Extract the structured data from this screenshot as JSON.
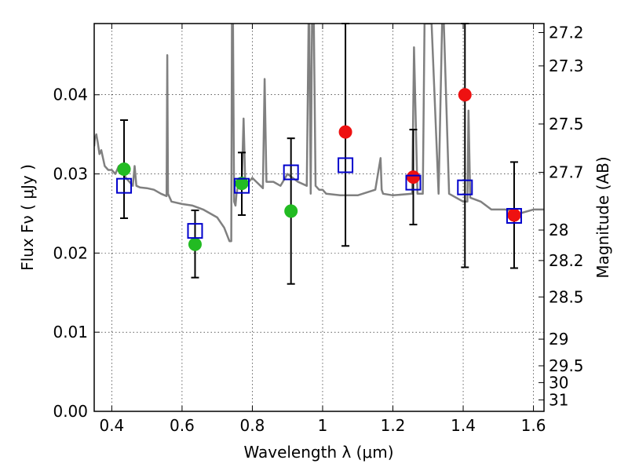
{
  "chart_data": {
    "type": "scatter",
    "title": "",
    "xlabel": "Wavelength  λ (μm)",
    "ylabel": "Flux  Fν  ( μJy )",
    "ylabel_right": "Magnitude (AB)",
    "xlim": [
      0.35,
      1.63
    ],
    "ylim": [
      0.0,
      0.049
    ],
    "grid": true,
    "x_ticks": [
      0.4,
      0.6,
      0.8,
      1.0,
      1.2,
      1.4,
      1.6
    ],
    "x_tick_labels": [
      "0.4",
      "0.6",
      "0.8",
      "1",
      "1.2",
      "1.4",
      "1.6"
    ],
    "y_ticks": [
      0.0,
      0.01,
      0.02,
      0.03,
      0.04
    ],
    "y_tick_labels": [
      "0.00",
      "0.01",
      "0.02",
      "0.03",
      "0.04"
    ],
    "right_tick_labels": [
      "27.2",
      "27.3",
      "27.5",
      "27.7",
      "28",
      "28.2",
      "28.5",
      "29",
      "29.5",
      "30",
      "31"
    ],
    "series": [
      {
        "color": "#808080",
        "kind": "line",
        "x": [
          0.35,
          0.352,
          0.356,
          0.36,
          0.365,
          0.37,
          0.375,
          0.38,
          0.39,
          0.4,
          0.41,
          0.42,
          0.43,
          0.44,
          0.45,
          0.46,
          0.465,
          0.47,
          0.48,
          0.5,
          0.52,
          0.54,
          0.556,
          0.558,
          0.56,
          0.57,
          0.6,
          0.63,
          0.66,
          0.7,
          0.72,
          0.735,
          0.74,
          0.742,
          0.745,
          0.748,
          0.752,
          0.755,
          0.76,
          0.765,
          0.77,
          0.775,
          0.78,
          0.8,
          0.83,
          0.835,
          0.84,
          0.86,
          0.88,
          0.9,
          0.93,
          0.955,
          0.96,
          0.962,
          0.966,
          0.97,
          0.975,
          0.98,
          0.99,
          1.0,
          1.01,
          1.05,
          1.1,
          1.15,
          1.165,
          1.168,
          1.172,
          1.2,
          1.255,
          1.26,
          1.27,
          1.285,
          1.29,
          1.31,
          1.33,
          1.34,
          1.345,
          1.36,
          1.4,
          1.412,
          1.415,
          1.42,
          1.45,
          1.48,
          1.52,
          1.56,
          1.6,
          1.63
        ],
        "y": [
          0.0335,
          0.0345,
          0.035,
          0.034,
          0.0325,
          0.033,
          0.032,
          0.031,
          0.0305,
          0.0305,
          0.03,
          0.031,
          0.0305,
          0.0295,
          0.029,
          0.0285,
          0.031,
          0.0285,
          0.0283,
          0.0282,
          0.028,
          0.0275,
          0.0272,
          0.045,
          0.0275,
          0.0265,
          0.0262,
          0.026,
          0.0255,
          0.0245,
          0.0232,
          0.0215,
          0.0215,
          0.049,
          0.049,
          0.0265,
          0.026,
          0.0275,
          0.0287,
          0.0287,
          0.0288,
          0.037,
          0.0285,
          0.0295,
          0.0282,
          0.042,
          0.029,
          0.029,
          0.0285,
          0.03,
          0.029,
          0.0285,
          0.049,
          0.049,
          0.0275,
          0.049,
          0.049,
          0.0285,
          0.028,
          0.028,
          0.0275,
          0.0273,
          0.0273,
          0.028,
          0.032,
          0.028,
          0.0275,
          0.0273,
          0.0275,
          0.046,
          0.0275,
          0.0275,
          0.049,
          0.049,
          0.0275,
          0.049,
          0.049,
          0.0275,
          0.0265,
          0.0265,
          0.038,
          0.027,
          0.0265,
          0.0255,
          0.0255,
          0.025,
          0.0255,
          0.0255
        ]
      },
      {
        "marker": "square-open",
        "color": "#0000cc",
        "x": [
          0.435,
          0.637,
          0.77,
          0.91,
          1.065,
          1.258,
          1.405,
          1.545
        ],
        "y": [
          0.0285,
          0.0228,
          0.0285,
          0.0302,
          0.0311,
          0.0289,
          0.0283,
          0.0247
        ],
        "yerr_low": [
          0.0244,
          0.0169,
          0.0248,
          0.0161,
          0.0209,
          0.0236,
          0.0182,
          0.0181
        ],
        "yerr_high": [
          0.0368,
          0.0254,
          0.0327,
          0.0345,
          0.0498,
          0.0356,
          0.0498,
          0.0315
        ]
      },
      {
        "marker": "circle",
        "color": "#22bb22",
        "x": [
          0.435,
          0.637,
          0.77,
          0.91
        ],
        "y": [
          0.0306,
          0.0211,
          0.0288,
          0.0253
        ]
      },
      {
        "marker": "circle",
        "color": "#ee1111",
        "x": [
          1.065,
          1.258,
          1.405,
          1.545
        ],
        "y": [
          0.0353,
          0.0296,
          0.04,
          0.0248
        ]
      }
    ]
  }
}
